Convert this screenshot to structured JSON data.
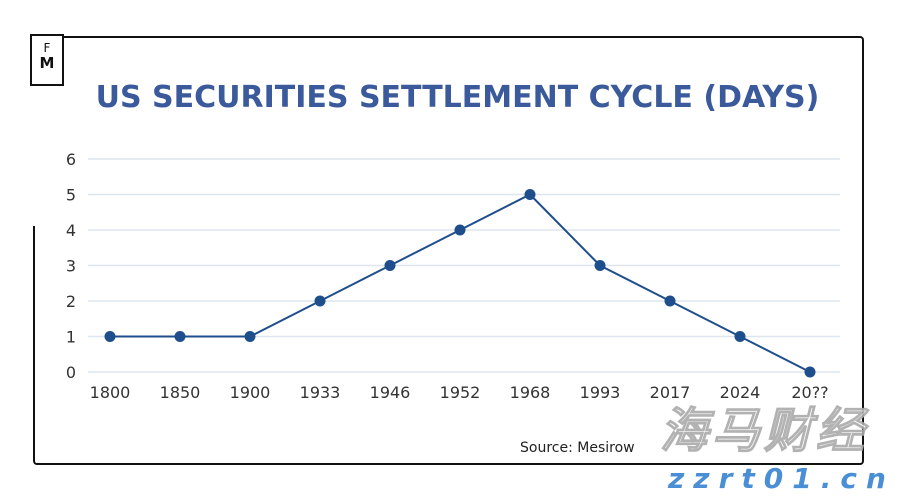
{
  "logo": {
    "top": "F",
    "bottom": "M"
  },
  "source": "Source: Mesirow",
  "watermark": {
    "line1": "海马财经",
    "line2": "zzrt01.cn"
  },
  "chart_data": {
    "type": "line",
    "title": "US SECURITIES SETTLEMENT CYCLE (DAYS)",
    "categories": [
      "1800",
      "1850",
      "1900",
      "1933",
      "1946",
      "1952",
      "1968",
      "1993",
      "2017",
      "2024",
      "20??"
    ],
    "values": [
      1,
      1,
      1,
      2,
      3,
      4,
      5,
      3,
      2,
      1,
      0
    ],
    "yticks": [
      0,
      1,
      2,
      3,
      4,
      5,
      6
    ],
    "ylim": [
      0,
      6
    ],
    "grid": true,
    "color": "#1f4e8c",
    "grid_color": "#dde6ee"
  }
}
